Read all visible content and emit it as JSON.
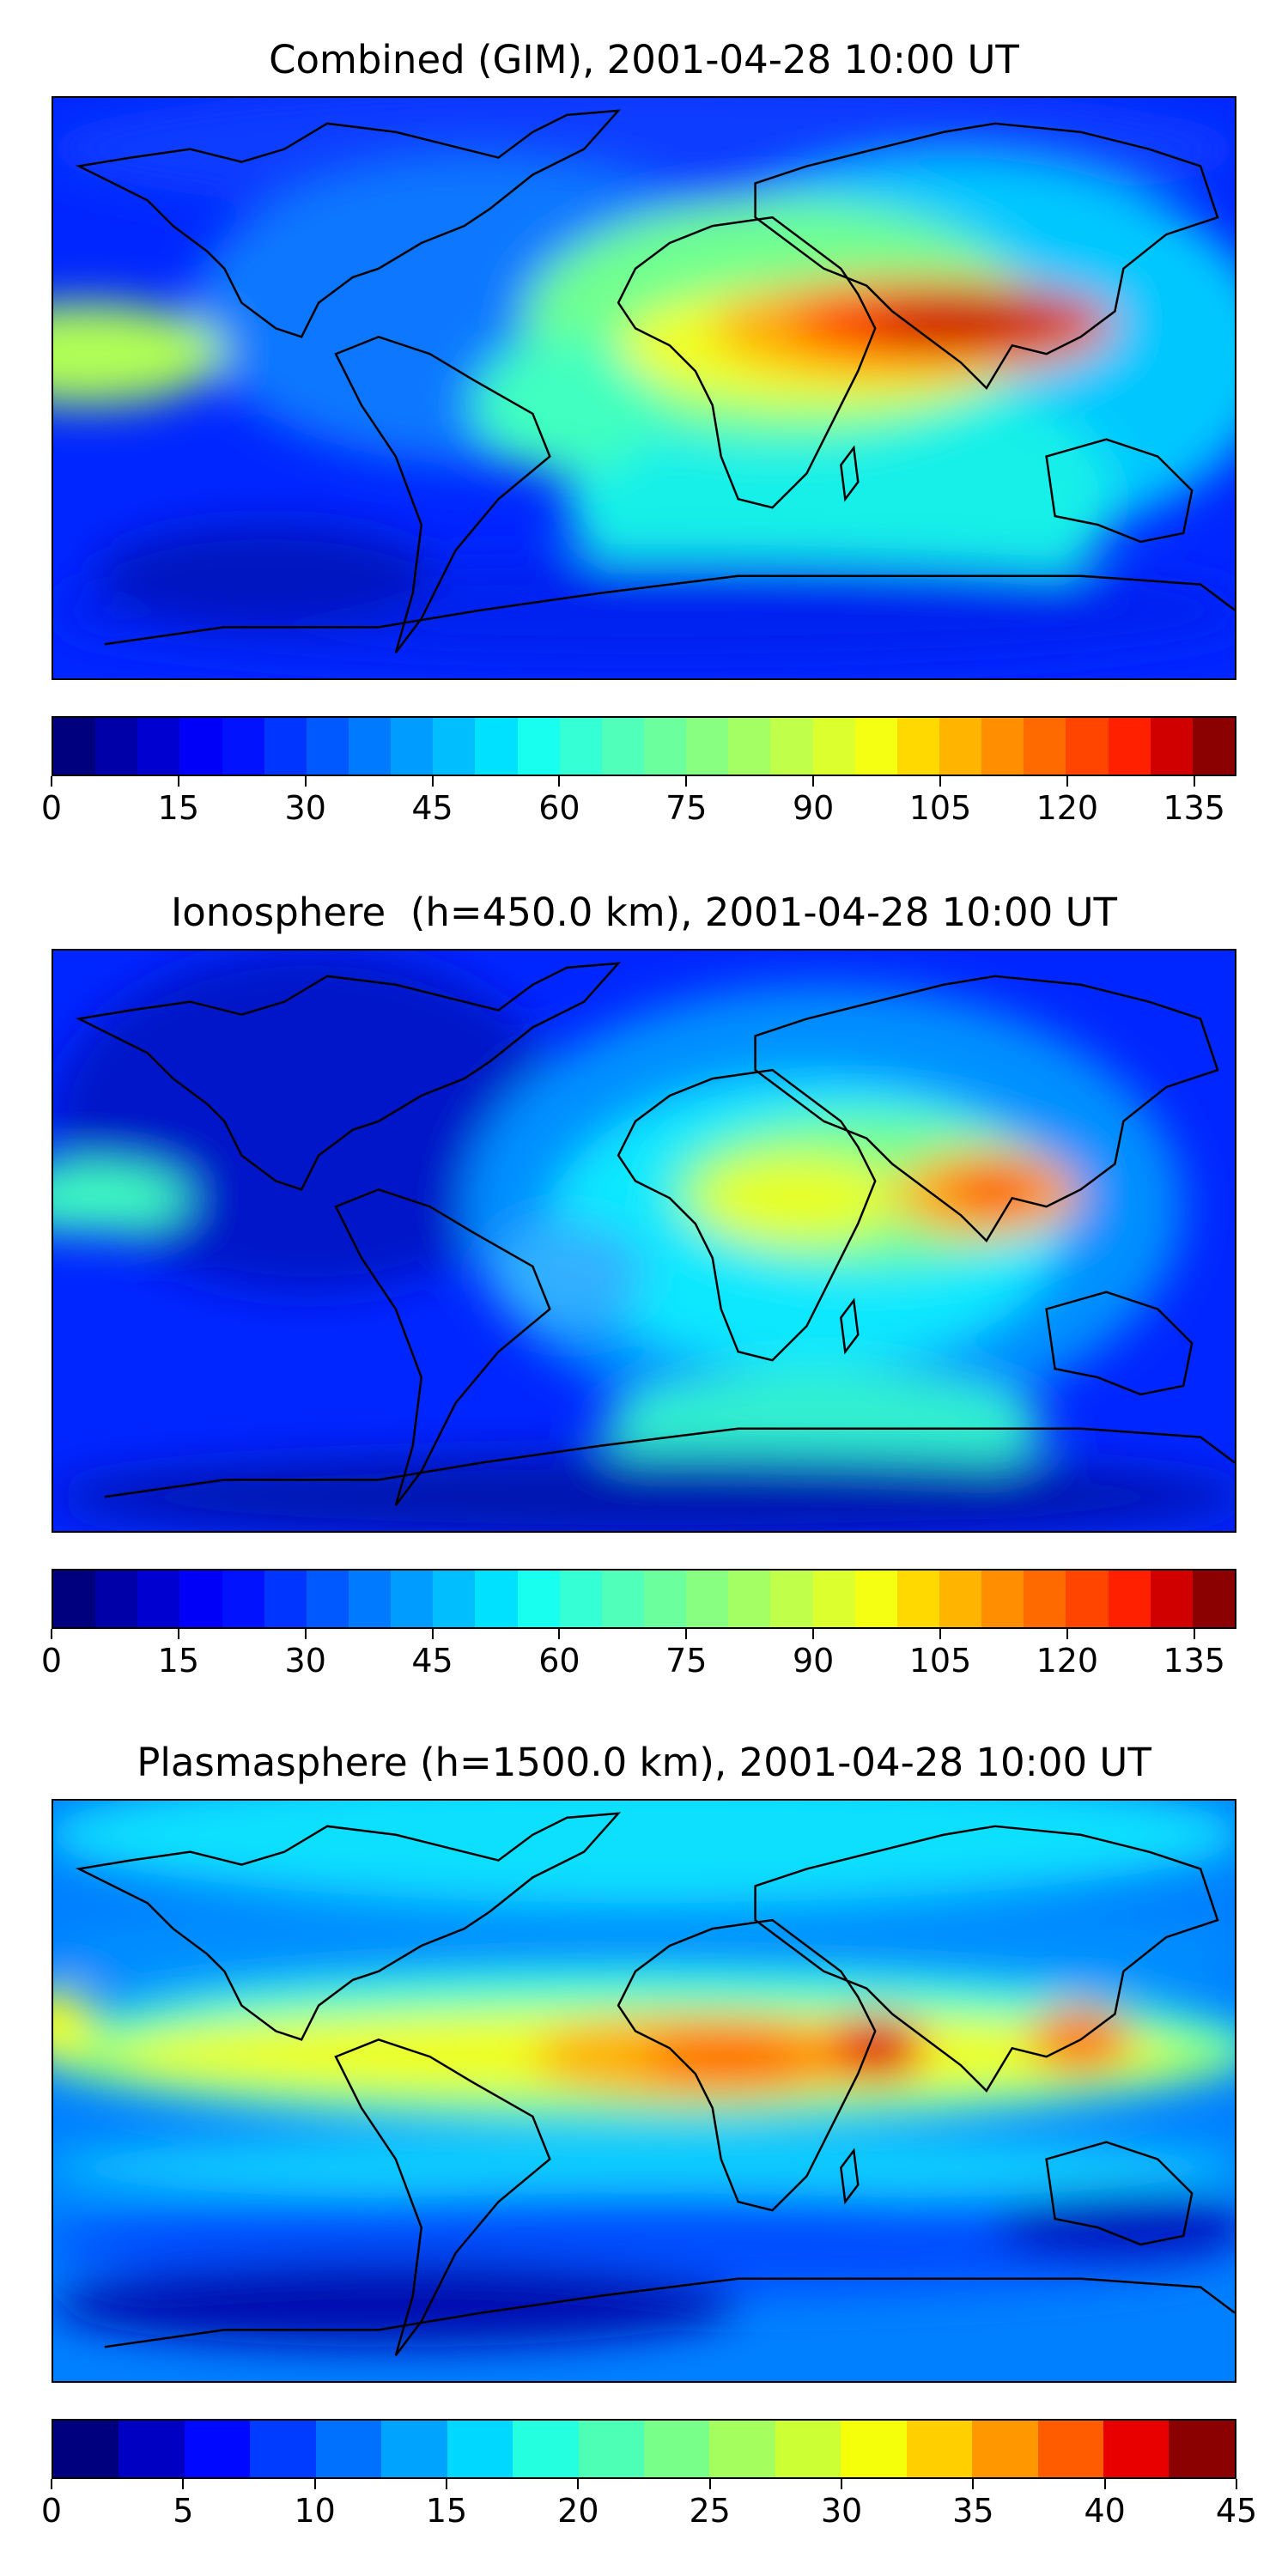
{
  "panels": [
    {
      "title": "Combined (GIM), 2001-04-28 10:00 UT",
      "colorbar": {
        "min": 0,
        "max": 140,
        "step": 5,
        "ticks": [
          "0",
          "15",
          "30",
          "45",
          "60",
          "75",
          "90",
          "105",
          "120",
          "135"
        ],
        "tick_values": [
          0,
          15,
          30,
          45,
          60,
          75,
          90,
          105,
          120,
          135
        ]
      }
    },
    {
      "title": "Ionosphere  (h=450.0 km), 2001-04-28 10:00 UT",
      "colorbar": {
        "min": 0,
        "max": 140,
        "step": 5,
        "ticks": [
          "0",
          "15",
          "30",
          "45",
          "60",
          "75",
          "90",
          "105",
          "120",
          "135"
        ],
        "tick_values": [
          0,
          15,
          30,
          45,
          60,
          75,
          90,
          105,
          120,
          135
        ]
      }
    },
    {
      "title": "Plasmasphere (h=1500.0 km), 2001-04-28 10:00 UT",
      "colorbar": {
        "min": 0,
        "max": 45,
        "step": 2.5,
        "ticks": [
          "0",
          "5",
          "10",
          "15",
          "20",
          "25",
          "30",
          "35",
          "40",
          "45"
        ],
        "tick_values": [
          0,
          5,
          10,
          15,
          20,
          25,
          30,
          35,
          40,
          45
        ]
      }
    }
  ],
  "colors": {
    "jet_28": [
      "#00007f",
      "#0000a8",
      "#0000d1",
      "#0000fa",
      "#0012ff",
      "#0035ff",
      "#0058ff",
      "#007aff",
      "#009cff",
      "#00beff",
      "#00e0ff",
      "#18fff0",
      "#34ffd5",
      "#50ffb9",
      "#6cff9d",
      "#88ff81",
      "#a4ff65",
      "#c0ff4a",
      "#dcff2e",
      "#f5ff12",
      "#ffd900",
      "#ffb400",
      "#ff8f00",
      "#ff6a00",
      "#ff4500",
      "#ff2000",
      "#d10000",
      "#8b0000"
    ],
    "jet_18": [
      "#00007f",
      "#0000c3",
      "#0008ff",
      "#003cff",
      "#0070ff",
      "#00a4ff",
      "#00d8ff",
      "#24ffe0",
      "#4cffb5",
      "#78ff89",
      "#a4ff5e",
      "#ccff34",
      "#f5ff0a",
      "#ffcf00",
      "#ff9800",
      "#ff5c00",
      "#e80000",
      "#8b0000"
    ]
  }
}
